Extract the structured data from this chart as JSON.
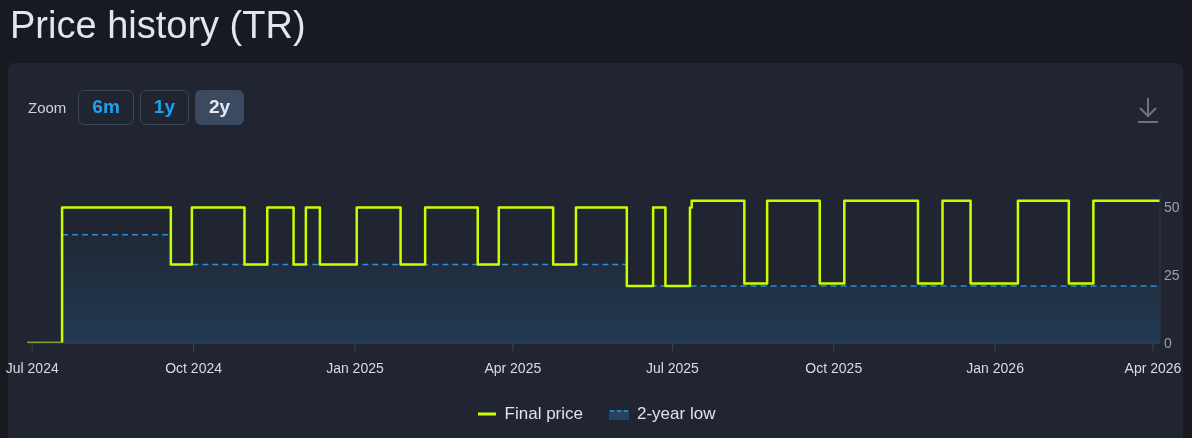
{
  "chart_data": {
    "type": "step",
    "title": "Price history (TR)",
    "annotations": [
      "Zoom",
      "6m",
      "1y",
      "2y"
    ],
    "x": [
      "2024-06-28",
      "2024-07-18",
      "2024-09-18",
      "2024-09-30",
      "2024-10-30",
      "2024-11-12",
      "2024-11-27",
      "2024-12-04",
      "2024-12-12",
      "2025-01-02",
      "2025-01-27",
      "2025-02-10",
      "2025-03-12",
      "2025-03-24",
      "2025-04-24",
      "2025-05-07",
      "2025-06-05",
      "2025-06-20",
      "2025-06-27",
      "2025-07-11",
      "2025-07-12",
      "2025-08-11",
      "2025-08-24",
      "2025-09-23",
      "2025-10-07",
      "2025-11-18",
      "2025-12-02",
      "2025-12-18",
      "2026-01-14",
      "2026-02-12",
      "2026-02-26",
      "2026-04-05"
    ],
    "series": [
      {
        "name": "Final price",
        "color": "#c8ff00",
        "line_style": "solid",
        "values": [
          0,
          50,
          29,
          50,
          29,
          50,
          29,
          50,
          29,
          50,
          29,
          50,
          29,
          50,
          29,
          50,
          21,
          50,
          21,
          50,
          52.5,
          22,
          52.5,
          22,
          52.5,
          22,
          52.5,
          22,
          52.5,
          22,
          52.5,
          52.5
        ]
      },
      {
        "name": "2-year low",
        "type": "area",
        "color": "#2a8fd6",
        "line_style": "dashed",
        "x": [
          "2024-07-18",
          "2024-09-18",
          "2024-09-18",
          "2025-06-05",
          "2025-06-05",
          "2026-04-05"
        ],
        "values": [
          40,
          40,
          29,
          29,
          21,
          21
        ]
      }
    ],
    "xlim": [
      "2024-06-28",
      "2026-04-05"
    ],
    "xticks": [
      {
        "value": "2024-07-01",
        "label": "Jul 2024"
      },
      {
        "value": "2024-10-01",
        "label": "Oct 2024"
      },
      {
        "value": "2025-01-01",
        "label": "Jan 2025"
      },
      {
        "value": "2025-04-01",
        "label": "Apr 2025"
      },
      {
        "value": "2025-07-01",
        "label": "Jul 2025"
      },
      {
        "value": "2025-10-01",
        "label": "Oct 2025"
      },
      {
        "value": "2026-01-01",
        "label": "Jan 2026"
      },
      {
        "value": "2026-04-01",
        "label": "Apr 2026"
      }
    ],
    "ylim": [
      0,
      55
    ],
    "yticks": [
      0,
      25,
      50
    ],
    "legend": "bottom"
  }
}
